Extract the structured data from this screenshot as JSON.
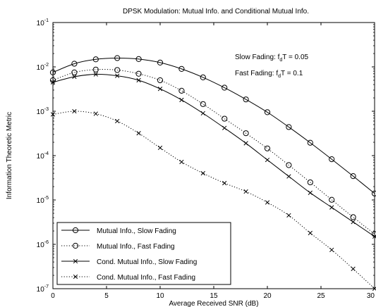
{
  "chart_data": {
    "type": "line",
    "title": "DPSK Modulation: Mutual Info. and Conditional Mutual Info.",
    "xlabel": "Average Received SNR (dB)",
    "ylabel": "Information Theoretic Metric",
    "xlim": [
      0,
      30
    ],
    "ylim": [
      1e-07,
      0.1
    ],
    "yscale": "log",
    "grid": false,
    "legend_position": "bottom-left",
    "x_ticks": [
      "0",
      "5",
      "10",
      "15",
      "20",
      "25",
      "30"
    ],
    "x_tick_values": [
      0,
      5,
      10,
      15,
      20,
      25,
      30
    ],
    "y_ticks": [
      {
        "base": "10",
        "exp": "-7"
      },
      {
        "base": "10",
        "exp": "-6"
      },
      {
        "base": "10",
        "exp": "-5"
      },
      {
        "base": "10",
        "exp": "-4"
      },
      {
        "base": "10",
        "exp": "-3"
      },
      {
        "base": "10",
        "exp": "-2"
      },
      {
        "base": "10",
        "exp": "-1"
      }
    ],
    "y_tick_values": [
      1e-07,
      1e-06,
      1e-05,
      0.0001,
      0.001,
      0.01,
      0.1
    ],
    "annotations": [
      {
        "prefix": "Slow Fading: f",
        "sub": "d",
        "suffix": "T = 0.05"
      },
      {
        "prefix": "Fast Fading: f",
        "sub": "d",
        "suffix": "T = 0.1"
      }
    ],
    "x": [
      0,
      2,
      4,
      6,
      8,
      10,
      12,
      14,
      16,
      18,
      20,
      22,
      24,
      26,
      28,
      30
    ],
    "series": [
      {
        "name": "Mutual Info., Slow Fading",
        "line": "solid",
        "marker": "circle",
        "values": [
          0.0075,
          0.0118,
          0.0148,
          0.0158,
          0.015,
          0.0125,
          0.009,
          0.0058,
          0.0034,
          0.00185,
          0.00095,
          0.00044,
          0.000195,
          8.3e-05,
          3.45e-05,
          1.4e-05
        ]
      },
      {
        "name": "Mutual Info., Fast Fading",
        "line": "dotted",
        "marker": "circle",
        "values": [
          0.005,
          0.0075,
          0.0087,
          0.0085,
          0.007,
          0.005,
          0.0029,
          0.00145,
          0.00068,
          0.00032,
          0.000145,
          6.1e-05,
          2.5e-05,
          1.01e-05,
          4.1e-06,
          1.7e-06
        ]
      },
      {
        "name": "Cond. Mutual Info., Slow Fading",
        "line": "solid",
        "marker": "x",
        "values": [
          0.0045,
          0.006,
          0.0068,
          0.0063,
          0.005,
          0.0032,
          0.0018,
          0.0009,
          0.00042,
          0.00019,
          8e-05,
          3.4e-05,
          1.45e-05,
          6.8e-06,
          3.2e-06,
          1.5e-06
        ]
      },
      {
        "name": "Cond. Mutual Info., Fast Fading",
        "line": "dotted",
        "marker": "x",
        "values": [
          0.00085,
          0.001,
          0.00088,
          0.0006,
          0.00032,
          0.00015,
          7.2e-05,
          4e-05,
          2.4e-05,
          1.55e-05,
          8.8e-06,
          4.5e-06,
          1.8e-06,
          7.5e-07,
          2.8e-07,
          1e-07
        ]
      }
    ]
  }
}
